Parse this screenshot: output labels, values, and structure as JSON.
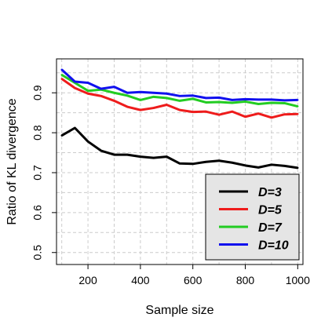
{
  "chart_data": {
    "type": "line",
    "xlabel": "Sample size",
    "ylabel": "Ratio of KL divergence",
    "xlim": [
      80,
      1020
    ],
    "ylim": [
      0.47,
      0.985
    ],
    "x_ticks": [
      "200",
      "400",
      "600",
      "800",
      "1000"
    ],
    "y_ticks": [
      "0.5",
      "0.6",
      "0.7",
      "0.8",
      "0.9"
    ],
    "grid": true,
    "legend_position": "bottom-right",
    "x": [
      100,
      150,
      200,
      250,
      300,
      350,
      400,
      450,
      500,
      550,
      600,
      650,
      700,
      750,
      800,
      850,
      900,
      950,
      1000
    ],
    "series": [
      {
        "name": "D=3",
        "color": "#000000",
        "values": [
          0.793,
          0.812,
          0.778,
          0.755,
          0.745,
          0.745,
          0.74,
          0.737,
          0.74,
          0.723,
          0.722,
          0.727,
          0.73,
          0.725,
          0.718,
          0.713,
          0.72,
          0.717,
          0.712
        ]
      },
      {
        "name": "D=5",
        "color": "#ee1c1c",
        "values": [
          0.935,
          0.912,
          0.898,
          0.892,
          0.88,
          0.865,
          0.857,
          0.862,
          0.87,
          0.857,
          0.852,
          0.853,
          0.845,
          0.853,
          0.84,
          0.848,
          0.838,
          0.846,
          0.847
        ]
      },
      {
        "name": "D=7",
        "color": "#22cc22",
        "values": [
          0.945,
          0.925,
          0.905,
          0.908,
          0.9,
          0.893,
          0.882,
          0.89,
          0.887,
          0.88,
          0.885,
          0.876,
          0.877,
          0.875,
          0.878,
          0.872,
          0.875,
          0.874,
          0.866
        ]
      },
      {
        "name": "D=10",
        "color": "#1111ee",
        "values": [
          0.958,
          0.928,
          0.925,
          0.91,
          0.915,
          0.9,
          0.902,
          0.9,
          0.898,
          0.892,
          0.893,
          0.887,
          0.888,
          0.882,
          0.884,
          0.883,
          0.883,
          0.881,
          0.882
        ]
      }
    ]
  }
}
